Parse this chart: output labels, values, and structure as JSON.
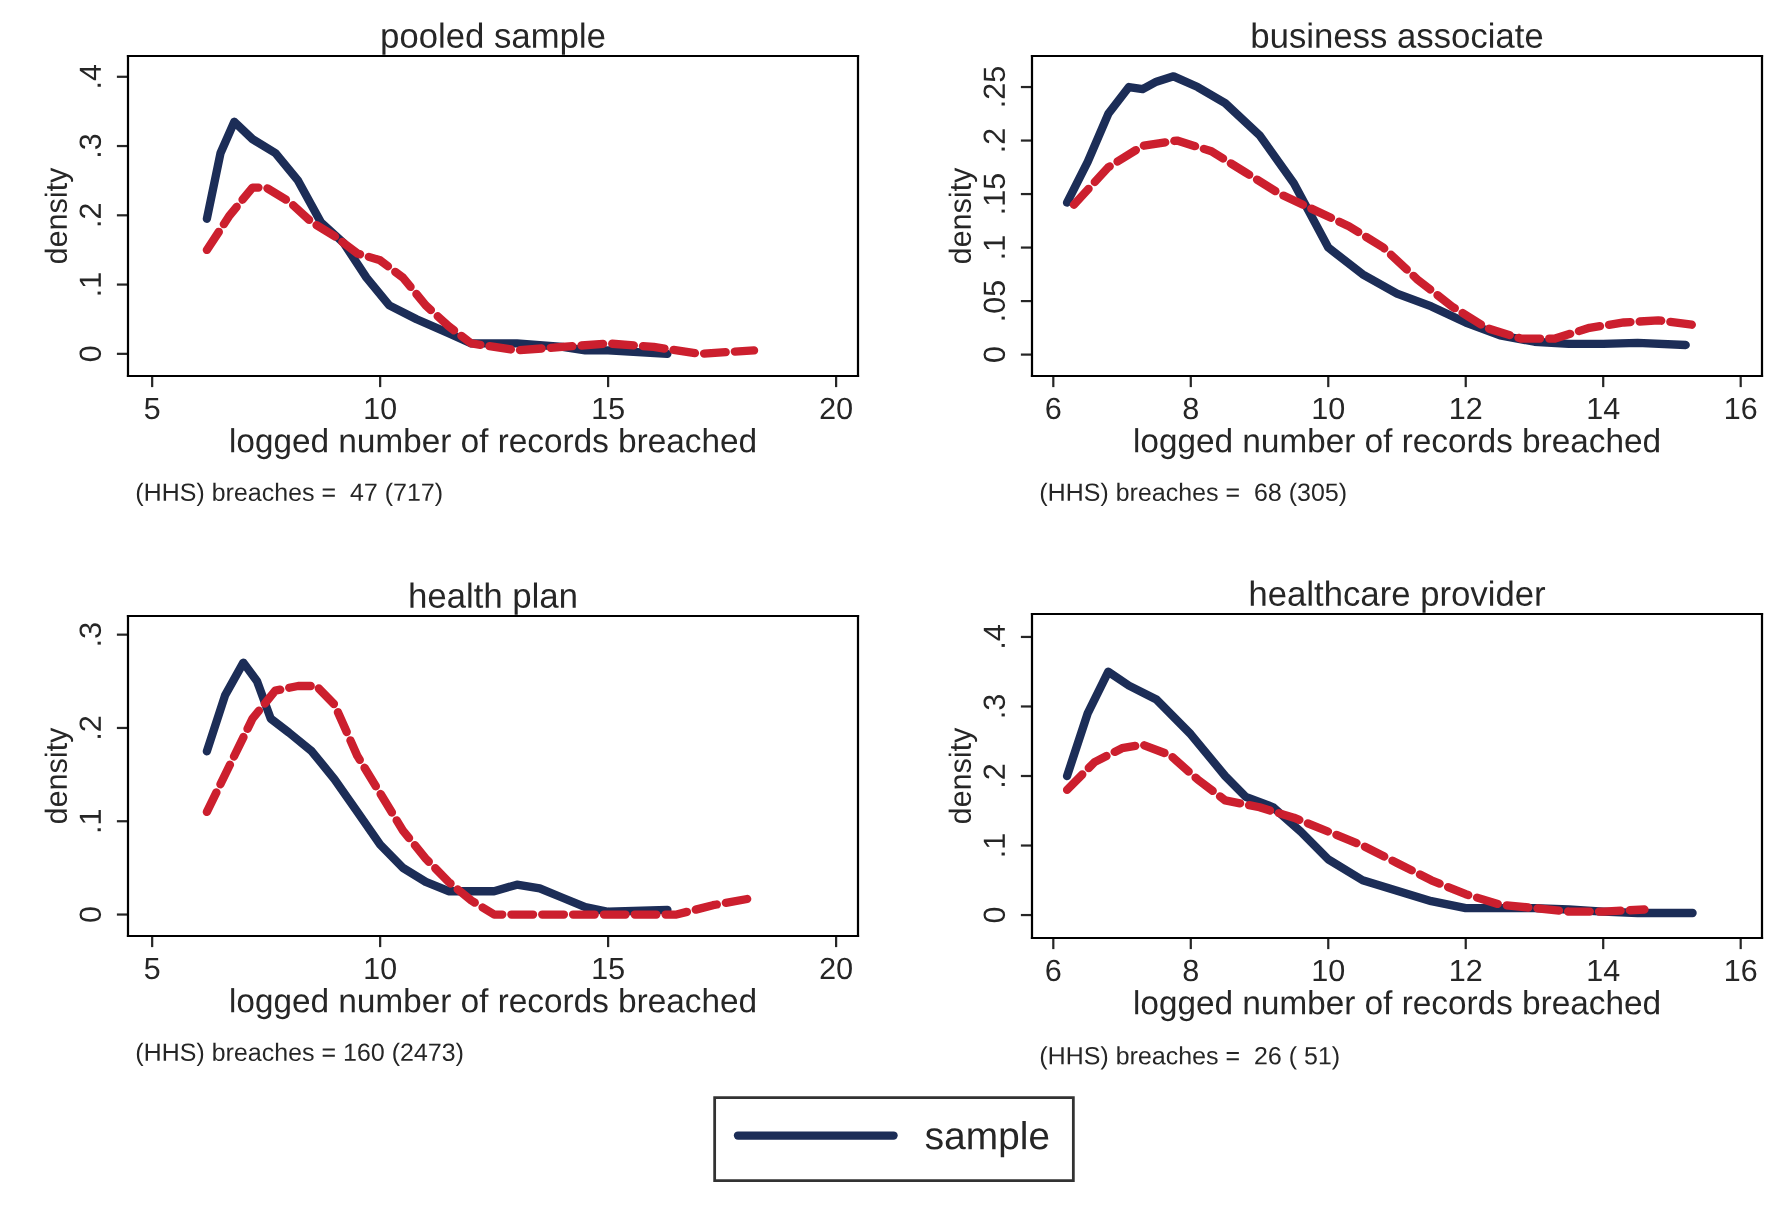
{
  "chart_data": [
    {
      "type": "line",
      "title": "pooled sample",
      "xlabel": "logged number of records breached",
      "ylabel": "density",
      "annotations": [
        "(HHS) breaches =  47 (717)"
      ],
      "xlim": [
        4.47,
        20.48
      ],
      "xticks": [
        5,
        10,
        15,
        20
      ],
      "ylim": [
        -0.032,
        0.43
      ],
      "yticks": [
        0,
        {
          "value": 0.1,
          "label": ".1"
        },
        {
          "value": 0.2,
          "label": ".2"
        },
        {
          "value": 0.3,
          "label": ".3"
        },
        {
          "value": 0.4,
          "label": ".4"
        }
      ],
      "grid": false,
      "legend": "bottom",
      "series": [
        {
          "name": "sample",
          "color": "#1c2d57",
          "line_style": "solid",
          "x": [
            6.2,
            6.5,
            6.8,
            7.2,
            7.7,
            8.2,
            8.7,
            9.2,
            9.7,
            10.2,
            10.8,
            11.5,
            12,
            13,
            14,
            14.5,
            15,
            16.3
          ],
          "values": [
            0.195,
            0.29,
            0.335,
            0.31,
            0.29,
            0.25,
            0.19,
            0.16,
            0.11,
            0.07,
            0.05,
            0.03,
            0.015,
            0.015,
            0.01,
            0.005,
            0.005,
            0.0
          ]
        },
        {
          "color": "#cc1f2e",
          "line_style": "dashed",
          "x": [
            6.2,
            6.7,
            7.2,
            7.5,
            8,
            8.5,
            9,
            9.5,
            10,
            10.5,
            11,
            11.5,
            12,
            13,
            14,
            15,
            16,
            17,
            18.2
          ],
          "values": [
            0.15,
            0.2,
            0.24,
            0.24,
            0.22,
            0.19,
            0.17,
            0.145,
            0.135,
            0.11,
            0.07,
            0.04,
            0.015,
            0.005,
            0.01,
            0.015,
            0.01,
            0.0,
            0.005
          ]
        }
      ]
    },
    {
      "type": "line",
      "title": "business associate",
      "xlabel": "logged number of records breached",
      "ylabel": "density",
      "annotations": [
        "(HHS) breaches =  68 (305)"
      ],
      "xlim": [
        5.69,
        16.31
      ],
      "xticks": [
        6,
        8,
        10,
        12,
        14,
        16
      ],
      "ylim": [
        -0.02,
        0.279
      ],
      "yticks": [
        0,
        {
          "value": 0.05,
          "label": ".05"
        },
        {
          "value": 0.1,
          "label": ".1"
        },
        {
          "value": 0.15,
          "label": ".15"
        },
        {
          "value": 0.2,
          "label": ".2"
        },
        {
          "value": 0.25,
          "label": ".25"
        }
      ],
      "grid": false,
      "series": [
        {
          "color": "#1c2d57",
          "line_style": "solid",
          "x": [
            6.2,
            6.5,
            6.8,
            7.1,
            7.3,
            7.5,
            7.75,
            8.1,
            8.5,
            9,
            9.5,
            10,
            10.5,
            11,
            11.5,
            12,
            12.5,
            13,
            13.5,
            14,
            14.5,
            15.2
          ],
          "values": [
            0.142,
            0.18,
            0.225,
            0.25,
            0.248,
            0.255,
            0.26,
            0.25,
            0.235,
            0.205,
            0.16,
            0.1,
            0.075,
            0.057,
            0.045,
            0.03,
            0.018,
            0.012,
            0.01,
            0.01,
            0.011,
            0.009
          ]
        },
        {
          "color": "#cc1f2e",
          "line_style": "dashed",
          "x": [
            6.3,
            6.8,
            7.3,
            7.8,
            8.3,
            8.8,
            9.3,
            9.8,
            10.3,
            10.8,
            11.3,
            11.8,
            12.3,
            12.8,
            13.3,
            13.8,
            14.3,
            14.8,
            15.4
          ],
          "values": [
            0.14,
            0.175,
            0.195,
            0.2,
            0.19,
            0.17,
            0.15,
            0.135,
            0.12,
            0.1,
            0.07,
            0.045,
            0.025,
            0.015,
            0.015,
            0.025,
            0.03,
            0.032,
            0.027
          ]
        }
      ]
    },
    {
      "type": "line",
      "title": "health plan",
      "xlabel": "logged number of records breached",
      "ylabel": "density",
      "annotations": [
        "(HHS) breaches = 160 (2473)"
      ],
      "xlim": [
        4.47,
        20.48
      ],
      "xticks": [
        5,
        10,
        15,
        20
      ],
      "ylim": [
        -0.023,
        0.32
      ],
      "yticks": [
        0,
        {
          "value": 0.1,
          "label": ".1"
        },
        {
          "value": 0.2,
          "label": ".2"
        },
        {
          "value": 0.3,
          "label": ".3"
        }
      ],
      "grid": false,
      "series": [
        {
          "color": "#1c2d57",
          "line_style": "solid",
          "x": [
            6.2,
            6.6,
            7.0,
            7.3,
            7.6,
            8,
            8.5,
            9,
            9.5,
            10,
            10.5,
            11,
            11.5,
            12,
            12.5,
            13,
            13.5,
            14,
            14.5,
            15,
            16.3
          ],
          "values": [
            0.175,
            0.235,
            0.27,
            0.25,
            0.21,
            0.195,
            0.175,
            0.145,
            0.11,
            0.075,
            0.05,
            0.035,
            0.025,
            0.025,
            0.025,
            0.032,
            0.028,
            0.018,
            0.008,
            0.003,
            0.005
          ]
        },
        {
          "color": "#cc1f2e",
          "line_style": "dashed",
          "x": [
            6.2,
            6.7,
            7.2,
            7.7,
            8.2,
            8.6,
            9,
            9.5,
            10,
            10.5,
            11,
            11.5,
            12,
            12.5,
            13,
            14,
            15,
            16.5,
            17.3,
            18.2
          ],
          "values": [
            0.11,
            0.16,
            0.21,
            0.24,
            0.245,
            0.245,
            0.225,
            0.17,
            0.13,
            0.09,
            0.06,
            0.035,
            0.015,
            0.0,
            0.0,
            0.0,
            0.0,
            0.0,
            0.01,
            0.018
          ]
        }
      ]
    },
    {
      "type": "line",
      "title": "healthcare provider",
      "xlabel": "logged number of records breached",
      "ylabel": "density",
      "annotations": [
        "(HHS) breaches =  26 ( 51)"
      ],
      "xlim": [
        5.69,
        16.31
      ],
      "xticks": [
        6,
        8,
        10,
        12,
        14,
        16
      ],
      "ylim": [
        -0.033,
        0.433
      ],
      "yticks": [
        0,
        {
          "value": 0.1,
          "label": ".1"
        },
        {
          "value": 0.2,
          "label": ".2"
        },
        {
          "value": 0.3,
          "label": ".3"
        },
        {
          "value": 0.4,
          "label": ".4"
        }
      ],
      "grid": false,
      "series": [
        {
          "color": "#1c2d57",
          "line_style": "solid",
          "x": [
            6.2,
            6.5,
            6.8,
            7.1,
            7.5,
            8,
            8.5,
            8.8,
            9.2,
            9.6,
            10,
            10.5,
            11,
            11.5,
            12,
            12.5,
            13,
            13.5,
            14,
            14.5,
            15.3
          ],
          "values": [
            0.2,
            0.29,
            0.35,
            0.33,
            0.31,
            0.26,
            0.2,
            0.17,
            0.155,
            0.12,
            0.08,
            0.05,
            0.035,
            0.02,
            0.01,
            0.01,
            0.01,
            0.008,
            0.005,
            0.003,
            0.003
          ]
        },
        {
          "color": "#cc1f2e",
          "line_style": "dashed",
          "x": [
            6.2,
            6.6,
            7.0,
            7.3,
            7.7,
            8.1,
            8.5,
            9,
            9.5,
            10,
            10.5,
            11,
            11.5,
            12,
            12.5,
            13,
            13.5,
            14,
            14.6
          ],
          "values": [
            0.18,
            0.22,
            0.24,
            0.245,
            0.23,
            0.195,
            0.165,
            0.155,
            0.14,
            0.12,
            0.1,
            0.075,
            0.05,
            0.03,
            0.015,
            0.01,
            0.005,
            0.005,
            0.008
          ]
        }
      ]
    }
  ]
}
